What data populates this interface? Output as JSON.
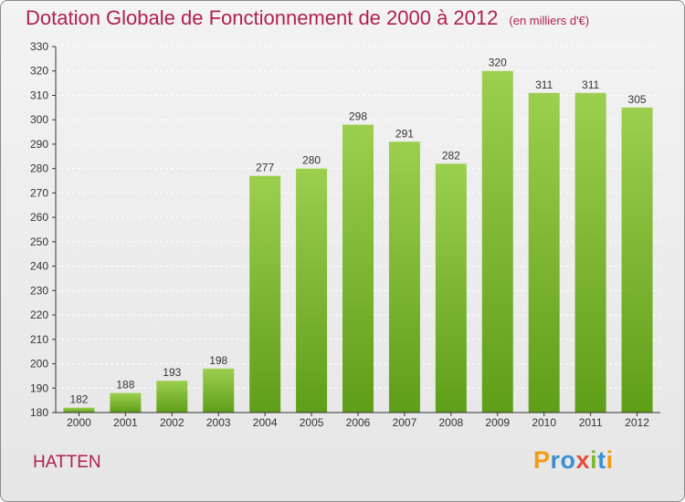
{
  "title": "Dotation Globale de Fonctionnement de 2000 à 2012",
  "unit_note": "(en milliers d'€)",
  "commune": "HATTEN",
  "logo_letters": [
    "P",
    "r",
    "o",
    "x",
    "i",
    "t",
    "i"
  ],
  "colors": {
    "title": "#b0214f",
    "bar_top": "#9ccf4e",
    "bar_bottom": "#5f9e18",
    "axis": "#333333",
    "grid": "#ffffff"
  },
  "chart_data": {
    "type": "bar",
    "title": "Dotation Globale de Fonctionnement de 2000 à 2012",
    "xlabel": "",
    "ylabel": "",
    "ylim": [
      180,
      330
    ],
    "yticks": [
      180,
      190,
      200,
      210,
      220,
      230,
      240,
      250,
      260,
      270,
      280,
      290,
      300,
      310,
      320,
      330
    ],
    "categories": [
      "2000",
      "2001",
      "2002",
      "2003",
      "2004",
      "2005",
      "2006",
      "2007",
      "2008",
      "2009",
      "2010",
      "2011",
      "2012"
    ],
    "values": [
      182,
      188,
      193,
      198,
      277,
      280,
      298,
      291,
      282,
      320,
      311,
      311,
      305
    ],
    "grid": true
  }
}
